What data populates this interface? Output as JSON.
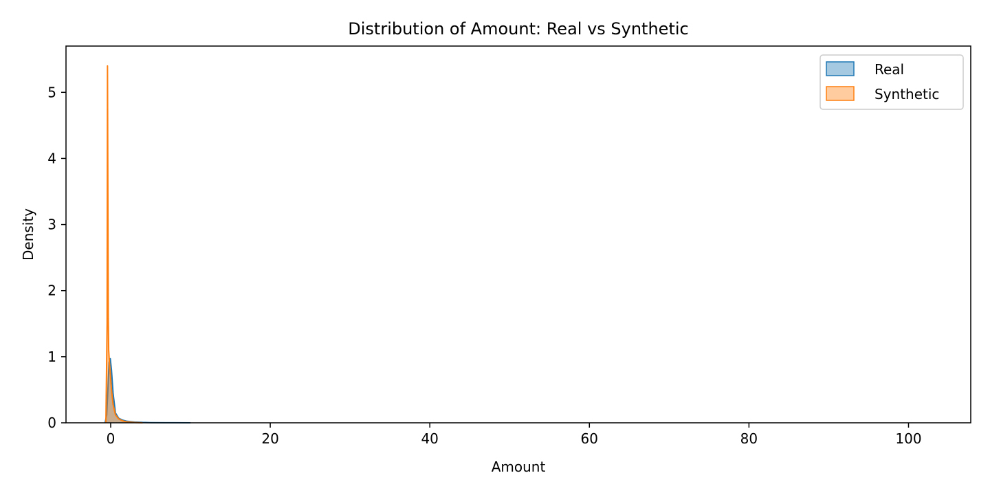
{
  "chart_data": {
    "type": "area",
    "title": "Distribution of Amount: Real vs Synthetic",
    "xlabel": "Amount",
    "ylabel": "Density",
    "xlim": [
      -5.6,
      107.8
    ],
    "ylim": [
      0,
      5.7
    ],
    "xticks": [
      0,
      20,
      40,
      60,
      80,
      100
    ],
    "yticks": [
      0,
      1,
      2,
      3,
      4,
      5
    ],
    "legend_position": "top-right",
    "grid": false,
    "series": [
      {
        "name": "Real",
        "color": "#1f77b4",
        "fill_opacity": 0.4,
        "x": [
          -0.7,
          -0.5,
          -0.35,
          -0.2,
          -0.05,
          0.1,
          0.3,
          0.6,
          1.0,
          1.5,
          2.0,
          3.0,
          4.0,
          5.0,
          7.0,
          10.0
        ],
        "y": [
          0.0,
          0.12,
          0.5,
          0.92,
          0.97,
          0.8,
          0.45,
          0.15,
          0.07,
          0.04,
          0.025,
          0.012,
          0.006,
          0.003,
          0.001,
          0.0
        ]
      },
      {
        "name": "Synthetic",
        "color": "#ff7f0e",
        "fill_opacity": 0.4,
        "x": [
          -0.6,
          -0.45,
          -0.4,
          -0.35,
          -0.3,
          -0.25,
          -0.2,
          -0.15,
          -0.05,
          0.1,
          0.3,
          0.6,
          1.0,
          1.5,
          2.0,
          3.0,
          4.0
        ],
        "y": [
          0.0,
          1.5,
          5.4,
          3.5,
          1.6,
          1.1,
          1.0,
          0.9,
          0.75,
          0.5,
          0.28,
          0.12,
          0.06,
          0.03,
          0.015,
          0.005,
          0.0
        ]
      }
    ]
  }
}
